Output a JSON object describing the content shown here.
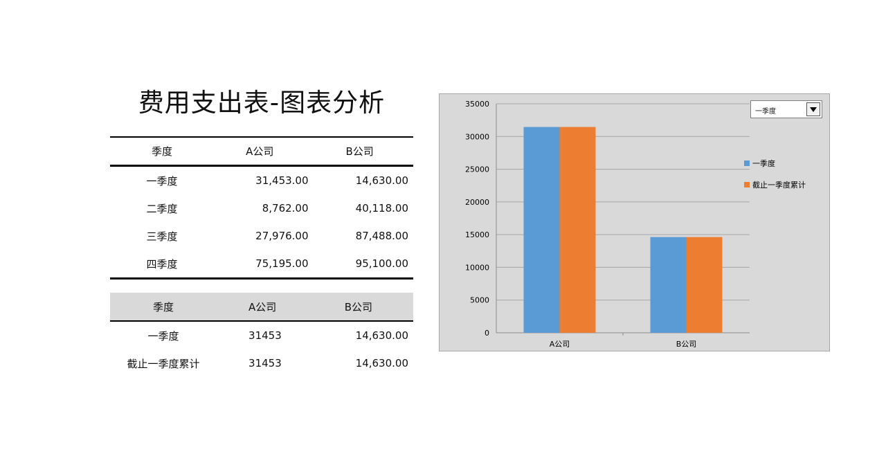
{
  "title": "费用支出表-图表分析",
  "table1": {
    "headers": [
      "季度",
      "A公司",
      "B公司"
    ],
    "rows": [
      [
        "一季度",
        "31,453.00",
        "14,630.00"
      ],
      [
        "二季度",
        "8,762.00",
        "40,118.00"
      ],
      [
        "三季度",
        "27,976.00",
        "87,488.00"
      ],
      [
        "四季度",
        "75,195.00",
        "95,100.00"
      ]
    ]
  },
  "table2": {
    "headers": [
      "季度",
      "A公司",
      "B公司"
    ],
    "rows": [
      [
        "一季度",
        "31453",
        "14,630.00"
      ],
      [
        "截止一季度累计",
        "31453",
        "14,630.00"
      ]
    ]
  },
  "dropdown": {
    "selected": "一季度"
  },
  "chart_data": {
    "type": "bar",
    "categories": [
      "A公司",
      "B公司"
    ],
    "series": [
      {
        "name": "一季度",
        "values": [
          31453,
          14630
        ],
        "color": "#5b9bd5"
      },
      {
        "name": "截止一季度累计",
        "values": [
          31453,
          14630
        ],
        "color": "#ed7d31"
      }
    ],
    "ylim": [
      0,
      35000
    ],
    "yticks": [
      0,
      5000,
      10000,
      15000,
      20000,
      25000,
      30000,
      35000
    ],
    "grid": true,
    "legend": "right"
  }
}
